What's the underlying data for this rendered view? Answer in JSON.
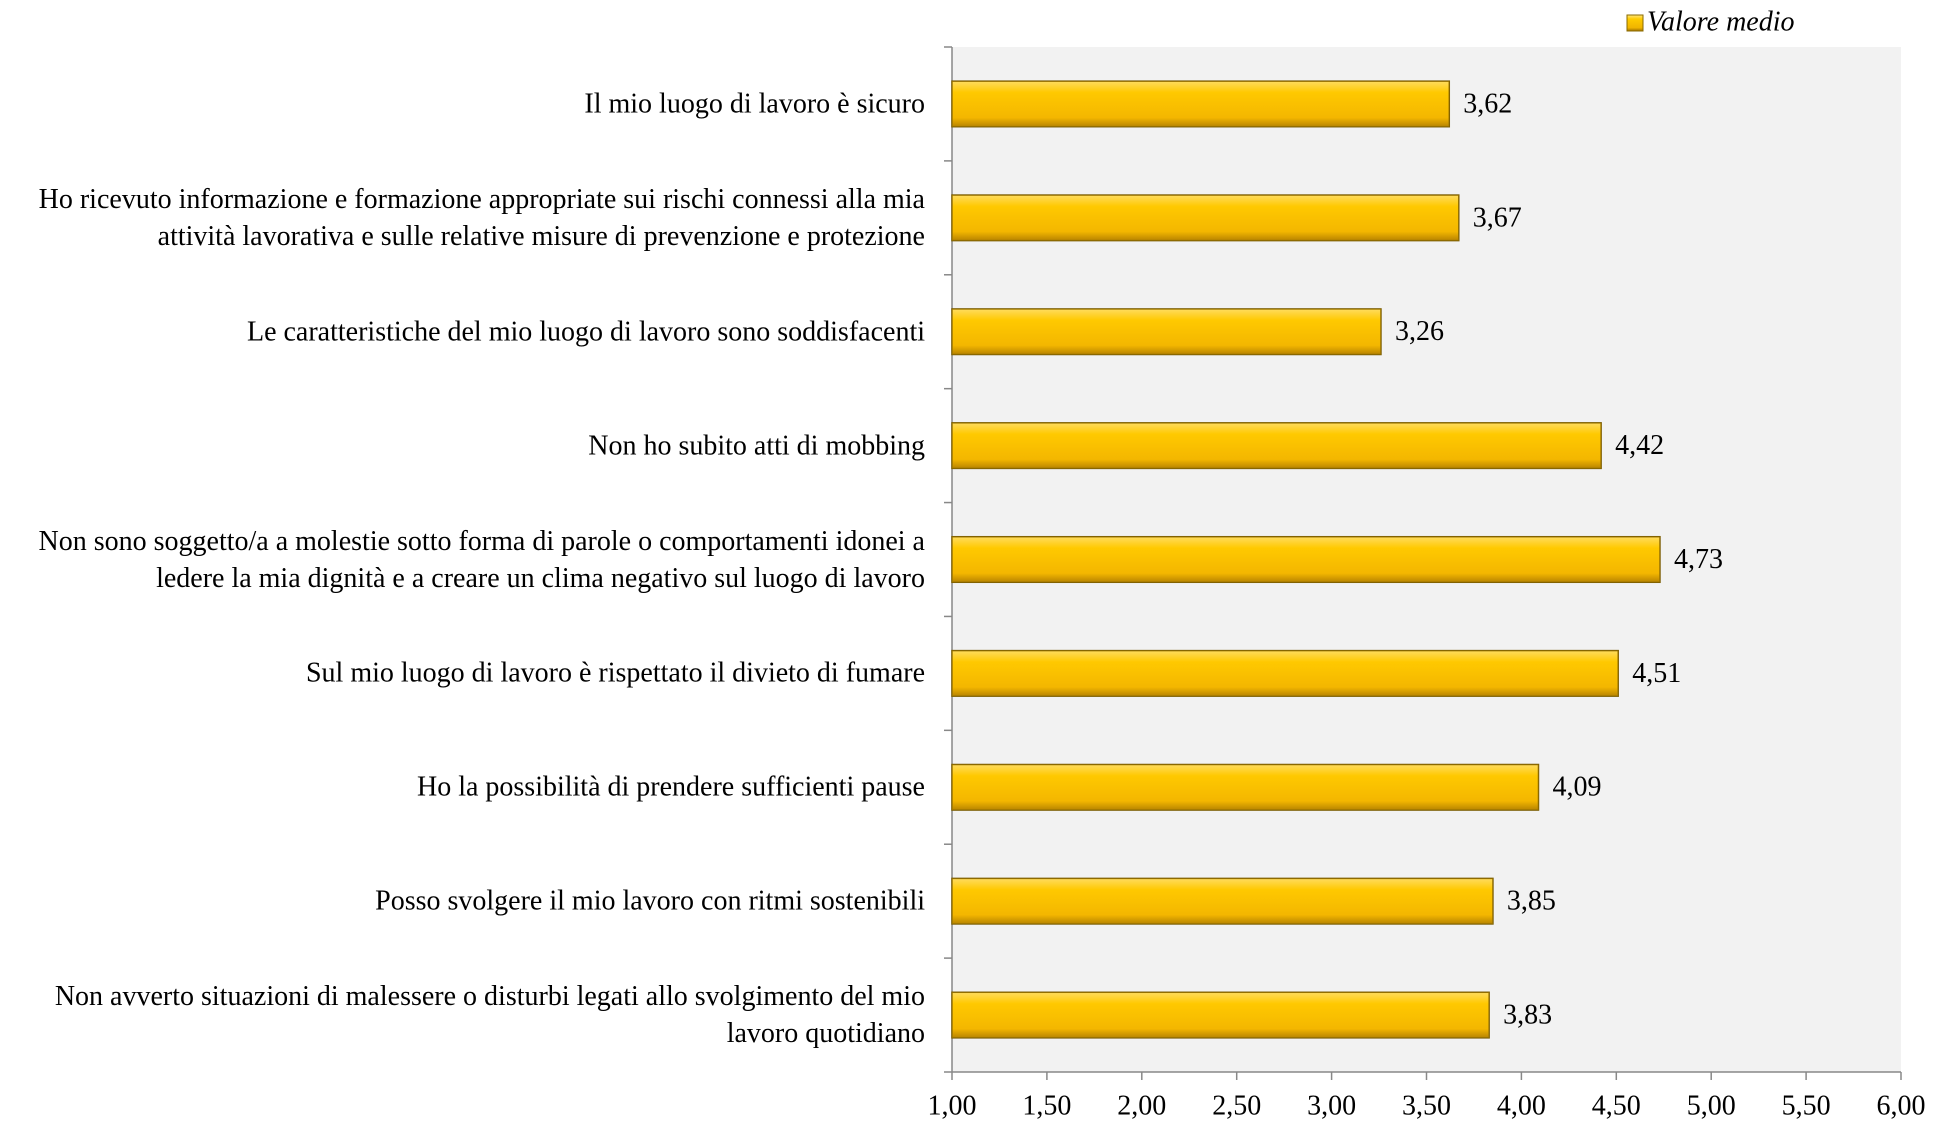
{
  "chart_data": {
    "type": "barh",
    "legend": "Valore medio",
    "legend_position": "top-right",
    "color": "#ffc000",
    "categories": [
      "Il mio luogo di lavoro è sicuro",
      "Ho ricevuto informazione e formazione appropriate sui rischi connessi alla mia attività lavorativa e sulle relative misure di prevenzione e protezione",
      "Le caratteristiche del mio luogo di lavoro sono soddisfacenti",
      "Non ho subito atti di mobbing",
      "Non sono soggetto/a a molestie sotto forma di parole o comportamenti idonei a ledere la mia dignità e a creare un clima negativo sul luogo di lavoro",
      "Sul mio luogo di lavoro è rispettato il divieto di fumare",
      "Ho la possibilità di prendere sufficienti pause",
      "Posso svolgere il mio lavoro con ritmi sostenibili",
      "Non avverto situazioni di malessere o disturbi legati allo svolgimento del mio lavoro quotidiano"
    ],
    "values": [
      3.62,
      3.67,
      3.26,
      4.42,
      4.73,
      4.51,
      4.09,
      3.85,
      3.83
    ],
    "value_labels": [
      "3,62",
      "3,67",
      "3,26",
      "4,42",
      "4,73",
      "4,51",
      "4,09",
      "3,85",
      "3,83"
    ],
    "xlim": [
      1,
      6
    ],
    "xticks": [
      {
        "value": 1,
        "label": "1,00"
      },
      {
        "value": 1.5,
        "label": "1,50"
      },
      {
        "value": 2,
        "label": "2,00"
      },
      {
        "value": 2.5,
        "label": "2,50"
      },
      {
        "value": 3,
        "label": "3,00"
      },
      {
        "value": 3.5,
        "label": "3,50"
      },
      {
        "value": 4,
        "label": "4,00"
      },
      {
        "value": 4.5,
        "label": "4,50"
      },
      {
        "value": 5,
        "label": "5,00"
      },
      {
        "value": 5.5,
        "label": "5,50"
      },
      {
        "value": 6,
        "label": "6,00"
      }
    ],
    "grid": false
  }
}
